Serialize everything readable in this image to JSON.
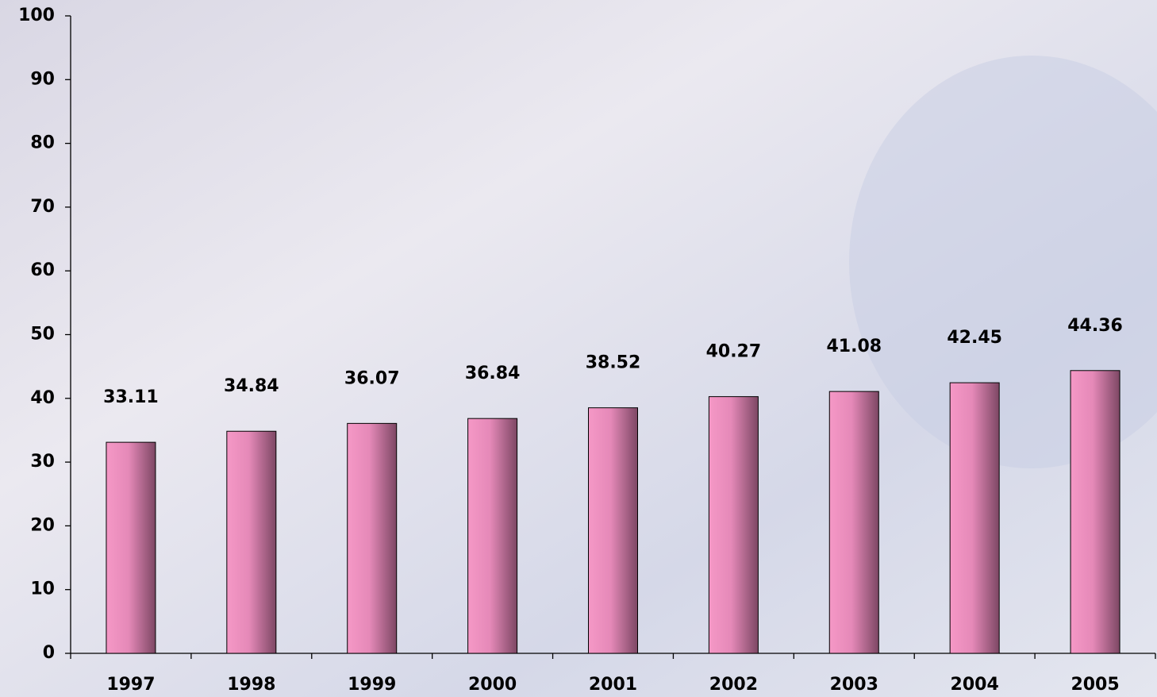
{
  "chart_data": {
    "type": "bar",
    "categories": [
      "1997",
      "1998",
      "1999",
      "2000",
      "2001",
      "2002",
      "2003",
      "2004",
      "2005"
    ],
    "values": [
      33.11,
      34.84,
      36.07,
      36.84,
      38.52,
      40.27,
      41.08,
      42.45,
      44.36
    ],
    "color": "#f598c6",
    "ylim": [
      0,
      100
    ],
    "yticks": [
      0,
      10,
      20,
      30,
      40,
      50,
      60,
      70,
      80,
      90,
      100
    ]
  }
}
